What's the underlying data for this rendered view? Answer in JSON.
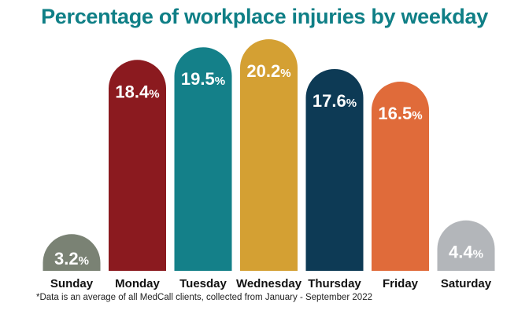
{
  "chart_data": {
    "type": "bar",
    "title": "Percentage of workplace injuries by weekday",
    "categories": [
      "Sunday",
      "Monday",
      "Tuesday",
      "Wednesday",
      "Thursday",
      "Friday",
      "Saturday"
    ],
    "values": [
      3.2,
      18.4,
      19.5,
      20.2,
      17.6,
      16.5,
      4.4
    ],
    "value_labels": [
      "3.2",
      "18.4",
      "19.5",
      "20.2",
      "17.6",
      "16.5",
      "4.4"
    ],
    "unit": "%",
    "colors": [
      "#7a8274",
      "#8b1a1f",
      "#148089",
      "#d4a033",
      "#0d3a55",
      "#e06b3a",
      "#b3b6ba"
    ],
    "title_color": "#0f7f86",
    "grid": false,
    "legend": "none",
    "bar_shape": "rounded-top"
  },
  "footnote": "*Data is an average of all MedCall clients, collected from January - September 2022"
}
